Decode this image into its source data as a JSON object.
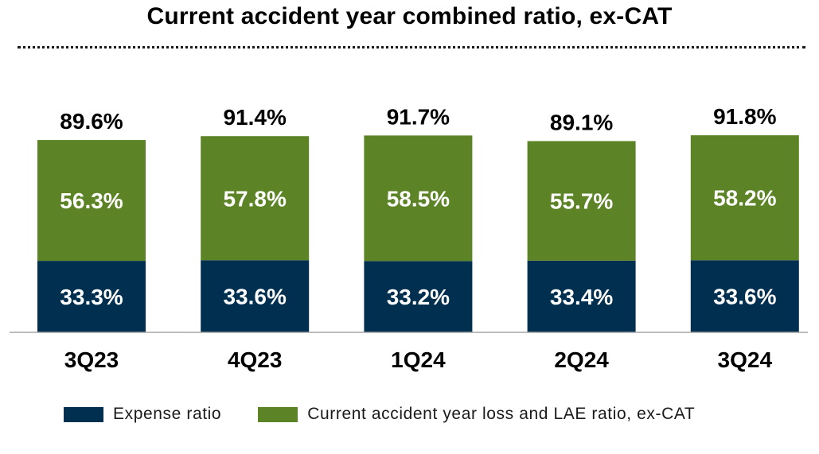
{
  "chart_data": {
    "type": "bar",
    "stacked": true,
    "title": "Current accident year combined ratio, ex-CAT",
    "categories": [
      "3Q23",
      "4Q23",
      "1Q24",
      "2Q24",
      "3Q24"
    ],
    "series": [
      {
        "name": "Expense ratio",
        "values": [
          33.3,
          33.6,
          33.2,
          33.4,
          33.6
        ],
        "labels": [
          "33.3%",
          "33.6%",
          "33.2%",
          "33.4%",
          "33.6%"
        ],
        "color": "#002f4f"
      },
      {
        "name": "Current accident year loss and LAE ratio, ex-CAT",
        "values": [
          56.3,
          57.8,
          58.5,
          55.7,
          58.2
        ],
        "labels": [
          "56.3%",
          "57.8%",
          "58.5%",
          "55.7%",
          "58.2%"
        ],
        "color": "#5c8426"
      }
    ],
    "totals": [
      89.6,
      91.4,
      91.7,
      89.1,
      91.8
    ],
    "total_labels": [
      "89.6%",
      "91.4%",
      "91.7%",
      "89.1%",
      "91.8%"
    ],
    "ylim": [
      0,
      100
    ],
    "grid": false,
    "legend_position": "bottom",
    "xlabel": "",
    "ylabel": ""
  }
}
